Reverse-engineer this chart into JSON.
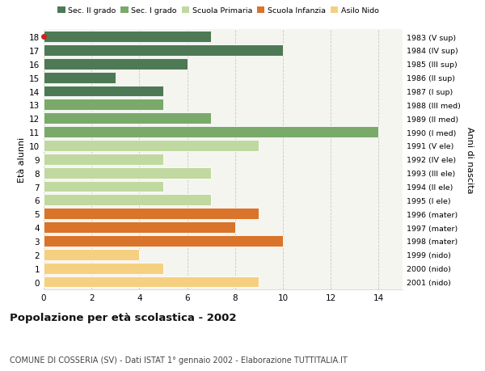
{
  "ages": [
    18,
    17,
    16,
    15,
    14,
    13,
    12,
    11,
    10,
    9,
    8,
    7,
    6,
    5,
    4,
    3,
    2,
    1,
    0
  ],
  "values": [
    7,
    10,
    6,
    3,
    5,
    5,
    7,
    14,
    9,
    5,
    7,
    5,
    7,
    9,
    8,
    10,
    4,
    5,
    9
  ],
  "right_labels": [
    "1983 (V sup)",
    "1984 (IV sup)",
    "1985 (III sup)",
    "1986 (II sup)",
    "1987 (I sup)",
    "1988 (III med)",
    "1989 (II med)",
    "1990 (I med)",
    "1991 (V ele)",
    "1992 (IV ele)",
    "1993 (III ele)",
    "1994 (II ele)",
    "1995 (I ele)",
    "1996 (mater)",
    "1997 (mater)",
    "1998 (mater)",
    "1999 (nido)",
    "2000 (nido)",
    "2001 (nido)"
  ],
  "bar_colors": [
    "#4d7a54",
    "#4d7a54",
    "#4d7a54",
    "#4d7a54",
    "#4d7a54",
    "#7aaa6a",
    "#7aaa6a",
    "#7aaa6a",
    "#c0d9a0",
    "#c0d9a0",
    "#c0d9a0",
    "#c0d9a0",
    "#c0d9a0",
    "#d9742a",
    "#d9742a",
    "#d9742a",
    "#f5d080",
    "#f5d080",
    "#f5d080"
  ],
  "legend_labels": [
    "Sec. II grado",
    "Sec. I grado",
    "Scuola Primaria",
    "Scuola Infanzia",
    "Asilo Nido"
  ],
  "legend_colors": [
    "#4d7a54",
    "#7aaa6a",
    "#c0d9a0",
    "#d9742a",
    "#f5d080"
  ],
  "ylabel_left": "Età alunni",
  "ylabel_right": "Anni di nascita",
  "title": "Popolazione per età scolastica - 2002",
  "subtitle": "COMUNE DI COSSERIA (SV) - Dati ISTAT 1° gennaio 2002 - Elaborazione TUTTITALIA.IT",
  "xlim": [
    0,
    15
  ],
  "xticks": [
    0,
    2,
    4,
    6,
    8,
    10,
    12,
    14
  ],
  "bg_color": "#ffffff",
  "plot_bg_color": "#f5f5f0",
  "highlight_dot_age": 18,
  "highlight_dot_color": "#cc2222",
  "bar_height": 0.82
}
